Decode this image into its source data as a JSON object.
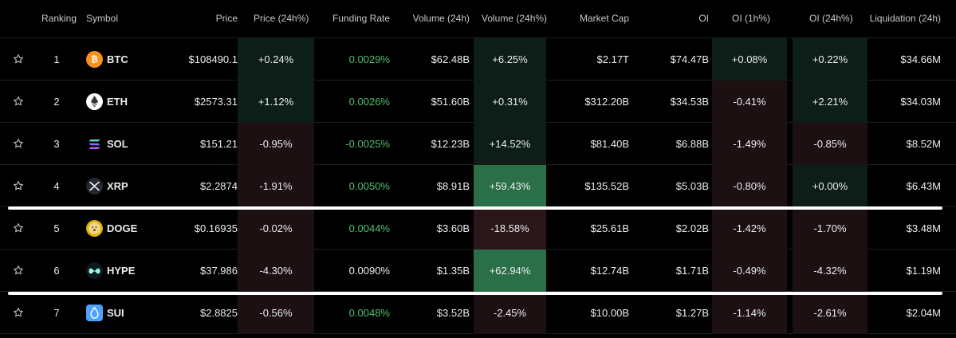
{
  "header": {
    "ranking": "Ranking",
    "symbol": "Symbol",
    "price": "Price",
    "price_change": "Price (24h%)",
    "funding_rate": "Funding Rate",
    "volume": "Volume (24h)",
    "volume_change": "Volume (24h%)",
    "market_cap": "Market Cap",
    "oi": "OI",
    "oi_1h": "OI (1h%)",
    "oi_24h": "OI (24h%)",
    "liquidation": "Liquidation (24h)"
  },
  "rows": [
    {
      "rank": "1",
      "symbol": "BTC",
      "icon": "btc-icon",
      "price": "$108490.1",
      "price_change": "+0.24%",
      "funding": "0.0029%",
      "volume": "$62.48B",
      "volume_change": "+6.25%",
      "market_cap": "$2.17T",
      "oi": "$74.47B",
      "oi_1h": "+0.08%",
      "oi_24h": "+0.22%",
      "liquidation": "$34.66M"
    },
    {
      "rank": "2",
      "symbol": "ETH",
      "icon": "eth-icon",
      "price": "$2573.31",
      "price_change": "+1.12%",
      "funding": "0.0026%",
      "volume": "$51.60B",
      "volume_change": "+0.31%",
      "market_cap": "$312.20B",
      "oi": "$34.53B",
      "oi_1h": "-0.41%",
      "oi_24h": "+2.21%",
      "liquidation": "$34.03M"
    },
    {
      "rank": "3",
      "symbol": "SOL",
      "icon": "sol-icon",
      "price": "$151.21",
      "price_change": "-0.95%",
      "funding": "-0.0025%",
      "volume": "$12.23B",
      "volume_change": "+14.52%",
      "market_cap": "$81.40B",
      "oi": "$6.88B",
      "oi_1h": "-1.49%",
      "oi_24h": "-0.85%",
      "liquidation": "$8.52M"
    },
    {
      "rank": "4",
      "symbol": "XRP",
      "icon": "xrp-icon",
      "price": "$2.2874",
      "price_change": "-1.91%",
      "funding": "0.0050%",
      "volume": "$8.91B",
      "volume_change": "+59.43%",
      "market_cap": "$135.52B",
      "oi": "$5.03B",
      "oi_1h": "-0.80%",
      "oi_24h": "+0.00%",
      "liquidation": "$6.43M"
    },
    {
      "rank": "5",
      "symbol": "DOGE",
      "icon": "doge-icon",
      "price": "$0.16935",
      "price_change": "-0.02%",
      "funding": "0.0044%",
      "volume": "$3.60B",
      "volume_change": "-18.58%",
      "market_cap": "$25.61B",
      "oi": "$2.02B",
      "oi_1h": "-1.42%",
      "oi_24h": "-1.70%",
      "liquidation": "$3.48M"
    },
    {
      "rank": "6",
      "symbol": "HYPE",
      "icon": "hype-icon",
      "price": "$37.986",
      "price_change": "-4.30%",
      "funding": "0.0090%",
      "volume": "$1.35B",
      "volume_change": "+62.94%",
      "market_cap": "$12.74B",
      "oi": "$1.71B",
      "oi_1h": "-0.49%",
      "oi_24h": "-4.32%",
      "liquidation": "$1.19M"
    },
    {
      "rank": "7",
      "symbol": "SUI",
      "icon": "sui-icon",
      "price": "$2.8825",
      "price_change": "-0.56%",
      "funding": "0.0048%",
      "volume": "$3.52B",
      "volume_change": "-2.45%",
      "market_cap": "$10.00B",
      "oi": "$1.27B",
      "oi_1h": "-1.14%",
      "oi_24h": "-2.61%",
      "liquidation": "$2.04M"
    }
  ],
  "colors": {
    "positive": "#4fbf6f",
    "background": "#000000",
    "btc": "#f7931a",
    "doge": "#c2a633",
    "hype": "#97fce4",
    "sui": "#4da2ff"
  }
}
